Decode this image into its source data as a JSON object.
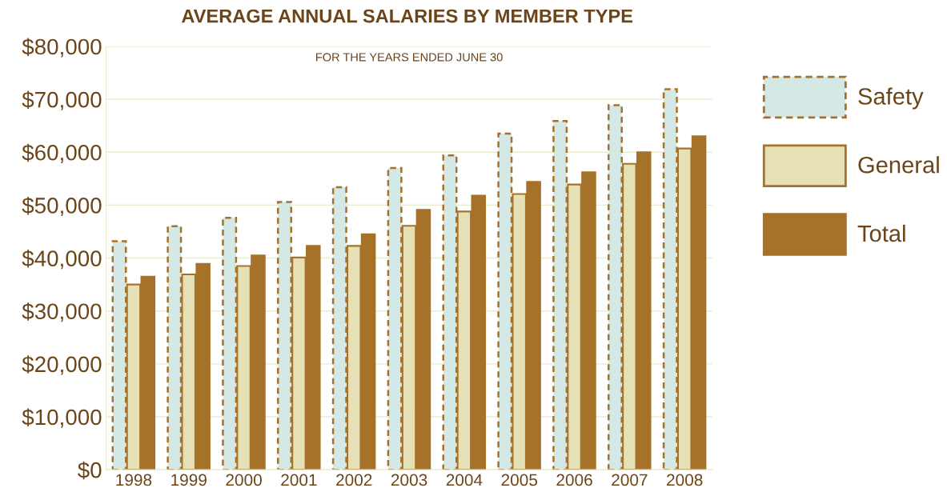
{
  "chart_data": {
    "type": "bar",
    "title": "AVERAGE ANNUAL SALARIES BY MEMBER TYPE",
    "subtitle": "FOR THE YEARS ENDED JUNE 30",
    "categories": [
      "1998",
      "1999",
      "2000",
      "2001",
      "2002",
      "2003",
      "2004",
      "2005",
      "2006",
      "2007",
      "2008"
    ],
    "series": [
      {
        "name": "Safety",
        "color": "#d4e8e6",
        "line_style": "dashed",
        "values": [
          43200,
          46000,
          47600,
          50600,
          53400,
          57000,
          59400,
          63500,
          65900,
          68900,
          71900
        ]
      },
      {
        "name": "General",
        "color": "#e5e0b5",
        "line_style": "solid",
        "values": [
          35000,
          36900,
          38500,
          40100,
          42300,
          46100,
          48800,
          52100,
          53900,
          57800,
          60700
        ]
      },
      {
        "name": "Total",
        "color": "#a67229",
        "line_style": "solid",
        "values": [
          36500,
          38900,
          40500,
          42300,
          44500,
          49100,
          51800,
          54400,
          56200,
          60000,
          63000
        ]
      }
    ],
    "ylim": [
      0,
      80000
    ],
    "yticks": [
      {
        "value": 0,
        "label": "$0"
      },
      {
        "value": 10000,
        "label": "$10,000"
      },
      {
        "value": 20000,
        "label": "$20,000"
      },
      {
        "value": 30000,
        "label": "$30,000"
      },
      {
        "value": 40000,
        "label": "$40,000"
      },
      {
        "value": 50000,
        "label": "$50,000"
      },
      {
        "value": 60000,
        "label": "$60,000"
      },
      {
        "value": 70000,
        "label": "$70,000"
      },
      {
        "value": 80000,
        "label": "$80,000"
      }
    ],
    "grid": "y",
    "legend": "right"
  }
}
